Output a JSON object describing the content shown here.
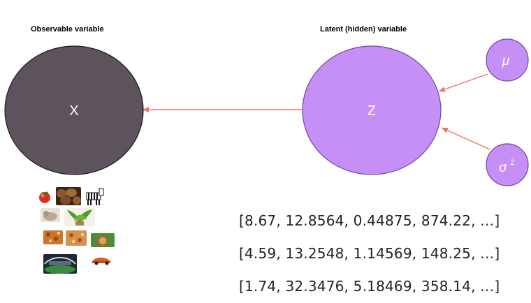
{
  "labels": {
    "observable": "Observable variable",
    "latent": "Latent (hidden) variable"
  },
  "nodes": {
    "x": {
      "text": "X",
      "color": "#5c535c"
    },
    "z": {
      "text": "Z",
      "color": "#c68ff5"
    },
    "mu": {
      "text": "μ",
      "color": "#c68ff5"
    },
    "sigma": {
      "text": "σ",
      "sup": "2",
      "color": "#c68ff5"
    }
  },
  "arrow_color": "#e8766a",
  "vectors": [
    "[8.67, 12.8564, 0.44875, 874.22, …]",
    "[4.59, 13.2548, 1.14569, 148.25, …]",
    "[1.74, 32.3476, 5.18469, 358.14, …]"
  ],
  "sample_images": [
    "tomato",
    "chestnuts",
    "zebra",
    "cat",
    "houseplant",
    "pizza",
    "pizza",
    "lion",
    "stadium",
    "sports-car"
  ]
}
